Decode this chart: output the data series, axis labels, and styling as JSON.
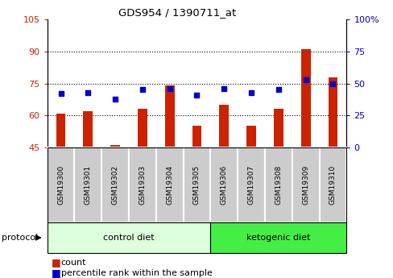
{
  "title": "GDS954 / 1390711_at",
  "samples": [
    "GSM19300",
    "GSM19301",
    "GSM19302",
    "GSM19303",
    "GSM19304",
    "GSM19305",
    "GSM19306",
    "GSM19307",
    "GSM19308",
    "GSM19309",
    "GSM19310"
  ],
  "count_values": [
    61,
    62,
    46,
    63,
    74,
    55,
    65,
    55,
    63,
    91,
    78
  ],
  "percentile_values": [
    42,
    43,
    38,
    45,
    46,
    41,
    46,
    43,
    45,
    53,
    50
  ],
  "ylim_left": [
    45,
    105
  ],
  "ylim_right": [
    0,
    100
  ],
  "yticks_left": [
    45,
    60,
    75,
    90,
    105
  ],
  "yticks_right": [
    0,
    25,
    50,
    75,
    100
  ],
  "ytick_labels_left": [
    "45",
    "60",
    "75",
    "90",
    "105"
  ],
  "ytick_labels_right": [
    "0",
    "25",
    "50",
    "75",
    "100%"
  ],
  "bar_color": "#cc2200",
  "dot_color": "#0000cc",
  "n_control": 6,
  "n_ketogenic": 5,
  "control_label": "control diet",
  "ketogenic_label": "ketogenic diet",
  "protocol_label": "protocol",
  "legend_count": "count",
  "legend_percentile": "percentile rank within the sample",
  "bg_color_control": "#ddffdd",
  "bg_color_ketogenic": "#44ee44",
  "bar_bottom": 45,
  "tick_label_color_left": "#cc2200",
  "tick_label_color_right": "#0000cc",
  "sample_box_color": "#cccccc",
  "grid_lines": [
    60,
    75,
    90
  ]
}
